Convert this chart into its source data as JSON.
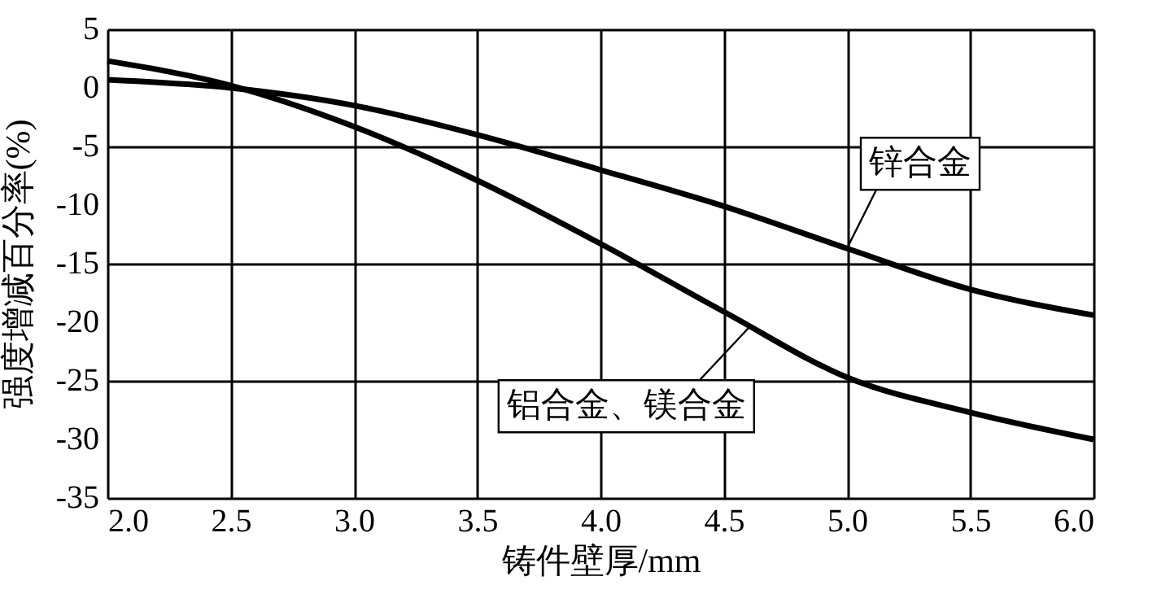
{
  "chart_data": {
    "type": "line",
    "xlabel": "铸件壁厚/mm",
    "ylabel": "强度增减百分率(%)",
    "x": [
      2.0,
      2.5,
      3.0,
      3.5,
      4.0,
      4.5,
      5.0,
      5.5,
      6.0
    ],
    "series": [
      {
        "color": "#000000",
        "values": [
          0.7,
          0.0,
          -1.5,
          -4.0,
          -7.0,
          -10.1,
          -13.7,
          -17.2,
          -19.4
        ]
      },
      {
        "color": "#000000",
        "values": [
          2.3,
          0.2,
          -3.3,
          -7.9,
          -13.3,
          -19.1,
          -24.7,
          -27.7,
          -30.0
        ]
      }
    ],
    "xlim": [
      2.0,
      6.0
    ],
    "ylim": [
      -35,
      5
    ],
    "xticks": [
      {
        "value": 2.0,
        "label": "2.0"
      },
      2.5,
      {
        "value": 3.0,
        "label": "3.0"
      },
      3.5,
      {
        "value": 4.0,
        "label": "4.0"
      },
      4.5,
      {
        "value": 5.0,
        "label": "5.0"
      },
      5.5,
      {
        "value": 6.0,
        "label": "6.0"
      }
    ],
    "yticks": [
      5,
      0,
      -5,
      -10,
      -15,
      -20,
      -25,
      -30,
      -35
    ],
    "grid": true,
    "legend": false,
    "marker": "none",
    "line_style": "solid",
    "annotations": [
      {
        "text": "锌合金",
        "x": 5.0,
        "y": -13.7
      },
      {
        "text": "铝合金、镁合金",
        "x": 4.6,
        "y": -20.5
      }
    ]
  }
}
